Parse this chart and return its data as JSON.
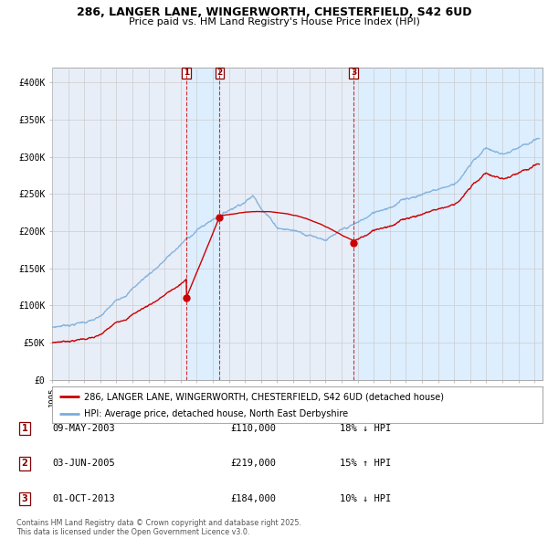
{
  "title_line1": "286, LANGER LANE, WINGERWORTH, CHESTERFIELD, S42 6UD",
  "title_line2": "Price paid vs. HM Land Registry's House Price Index (HPI)",
  "ylim": [
    0,
    420000
  ],
  "yticks": [
    0,
    50000,
    100000,
    150000,
    200000,
    250000,
    300000,
    350000,
    400000
  ],
  "ytick_labels": [
    "£0",
    "£50K",
    "£100K",
    "£150K",
    "£200K",
    "£250K",
    "£300K",
    "£350K",
    "£400K"
  ],
  "sale_color": "#cc0000",
  "hpi_color": "#7aaddb",
  "highlight_bg": "#ddeeff",
  "grid_color": "#cccccc",
  "chart_bg": "#e8eef8",
  "sales": [
    {
      "date_num": 2003.36,
      "price": 110000,
      "label": "1",
      "date_str": "09-MAY-2003",
      "hpi_pct": "18%",
      "hpi_dir": "↓"
    },
    {
      "date_num": 2005.42,
      "price": 219000,
      "label": "2",
      "date_str": "03-JUN-2005",
      "hpi_pct": "15%",
      "hpi_dir": "↑"
    },
    {
      "date_num": 2013.75,
      "price": 184000,
      "label": "3",
      "date_str": "01-OCT-2013",
      "hpi_pct": "10%",
      "hpi_dir": "↓"
    }
  ],
  "legend_sale_label": "286, LANGER LANE, WINGERWORTH, CHESTERFIELD, S42 6UD (detached house)",
  "legend_hpi_label": "HPI: Average price, detached house, North East Derbyshire",
  "footnote": "Contains HM Land Registry data © Crown copyright and database right 2025.\nThis data is licensed under the Open Government Licence v3.0.",
  "xmin": 1995.0,
  "xmax": 2025.5
}
